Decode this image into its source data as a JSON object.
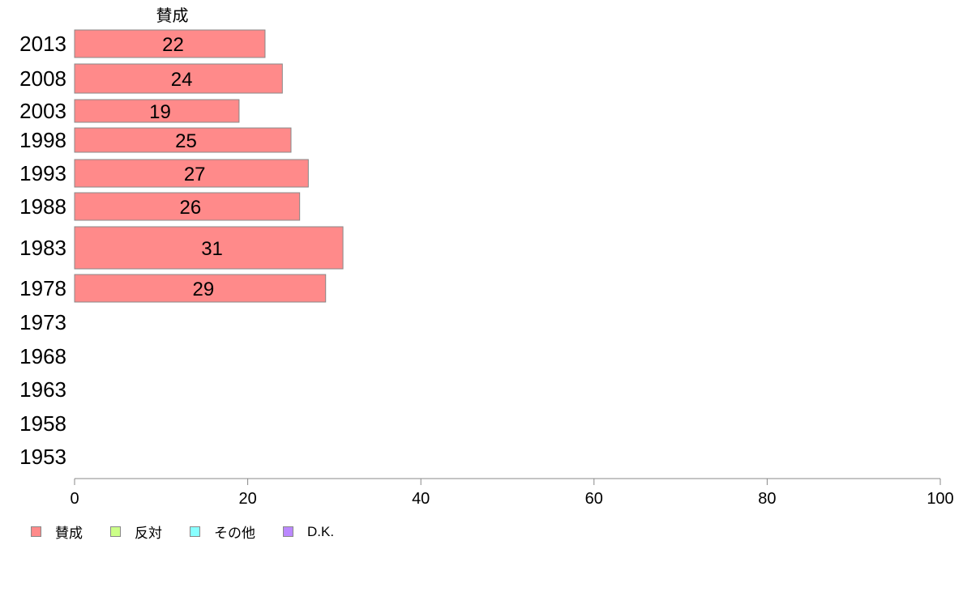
{
  "chart_data": {
    "type": "bar",
    "orientation": "horizontal",
    "stacked": true,
    "categories": [
      "2013",
      "2008",
      "2003",
      "1998",
      "1993",
      "1988",
      "1983",
      "1978",
      "1973",
      "1968",
      "1963",
      "1958",
      "1953"
    ],
    "series": [
      {
        "name": "賛成",
        "color": "#ff8a8a",
        "values": [
          22,
          24,
          19,
          25,
          27,
          26,
          31,
          29,
          null,
          null,
          null,
          null,
          null
        ]
      },
      {
        "name": "反対",
        "color": "#ccff88",
        "values": [
          null,
          null,
          null,
          null,
          null,
          null,
          null,
          null,
          null,
          null,
          null,
          null,
          null
        ]
      },
      {
        "name": "その他",
        "color": "#88ffff",
        "values": [
          null,
          null,
          null,
          null,
          null,
          null,
          null,
          null,
          null,
          null,
          null,
          null,
          null
        ]
      },
      {
        "name": "D.K.",
        "color": "#bb88ff",
        "values": [
          null,
          null,
          null,
          null,
          null,
          null,
          null,
          null,
          null,
          null,
          null,
          null,
          null
        ]
      }
    ],
    "xlim": [
      0,
      100
    ],
    "xticks": [
      0,
      20,
      40,
      60,
      80,
      100
    ],
    "series_header": "賛成",
    "legend_position": "bottom-left",
    "grid": false
  }
}
